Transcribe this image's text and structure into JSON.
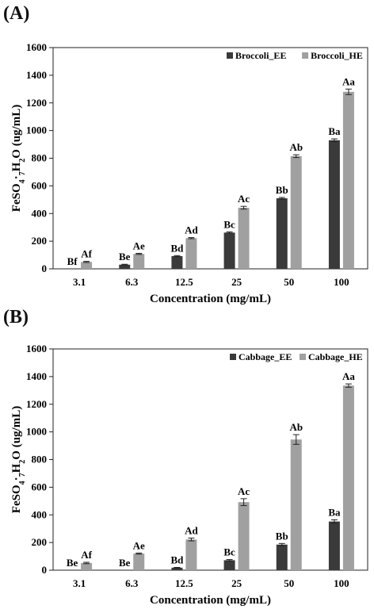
{
  "chart_data": [
    {
      "panel_label": "(A)",
      "type": "bar",
      "categories": [
        "3.1",
        "6.3",
        "12.5",
        "25",
        "50",
        "100"
      ],
      "xlabel": "Concentration (mg/mL)",
      "ylabel": "FeSO4·7H2O (ug/mL)",
      "ylim": [
        0,
        1600
      ],
      "yticks": [
        0,
        200,
        400,
        600,
        800,
        1000,
        1200,
        1400,
        1600
      ],
      "legend_position": "top-right",
      "series": [
        {
          "name": "Broccoli_EE",
          "color": "#3a3a3a",
          "values": [
            0,
            30,
            92,
            262,
            510,
            930
          ],
          "errors": [
            0,
            3,
            4,
            5,
            6,
            10
          ],
          "labels": [
            "Bf",
            "Be",
            "Bd",
            "Bc",
            "Bb",
            "Ba"
          ]
        },
        {
          "name": "Broccoli_HE",
          "color": "#a0a0a0",
          "values": [
            50,
            108,
            222,
            442,
            815,
            1280
          ],
          "errors": [
            4,
            4,
            4,
            10,
            10,
            20
          ],
          "labels": [
            "Af",
            "Ae",
            "Ad",
            "Ac",
            "Ab",
            "Aa"
          ]
        }
      ]
    },
    {
      "panel_label": "(B)",
      "type": "bar",
      "categories": [
        "3.1",
        "6.3",
        "12.5",
        "25",
        "50",
        "100"
      ],
      "xlabel": "Concentration (mg/mL)",
      "ylabel": "FeSO4·7H2O (ug/mL)",
      "ylim": [
        0,
        1600
      ],
      "yticks": [
        0,
        200,
        400,
        600,
        800,
        1000,
        1200,
        1400,
        1600
      ],
      "legend_position": "top-right",
      "series": [
        {
          "name": "Cabbage_EE",
          "color": "#3a3a3a",
          "values": [
            0,
            0,
            18,
            72,
            185,
            352
          ],
          "errors": [
            0,
            0,
            2,
            5,
            8,
            12
          ],
          "labels": [
            "Be",
            "Be",
            "Bd",
            "Bc",
            "Bb",
            "Ba"
          ]
        },
        {
          "name": "Cabbage_HE",
          "color": "#a0a0a0",
          "values": [
            52,
            120,
            222,
            492,
            945,
            1335
          ],
          "errors": [
            5,
            4,
            10,
            25,
            35,
            12
          ],
          "labels": [
            "Af",
            "Ae",
            "Ad",
            "Ac",
            "Ab",
            "Aa"
          ]
        }
      ]
    }
  ]
}
